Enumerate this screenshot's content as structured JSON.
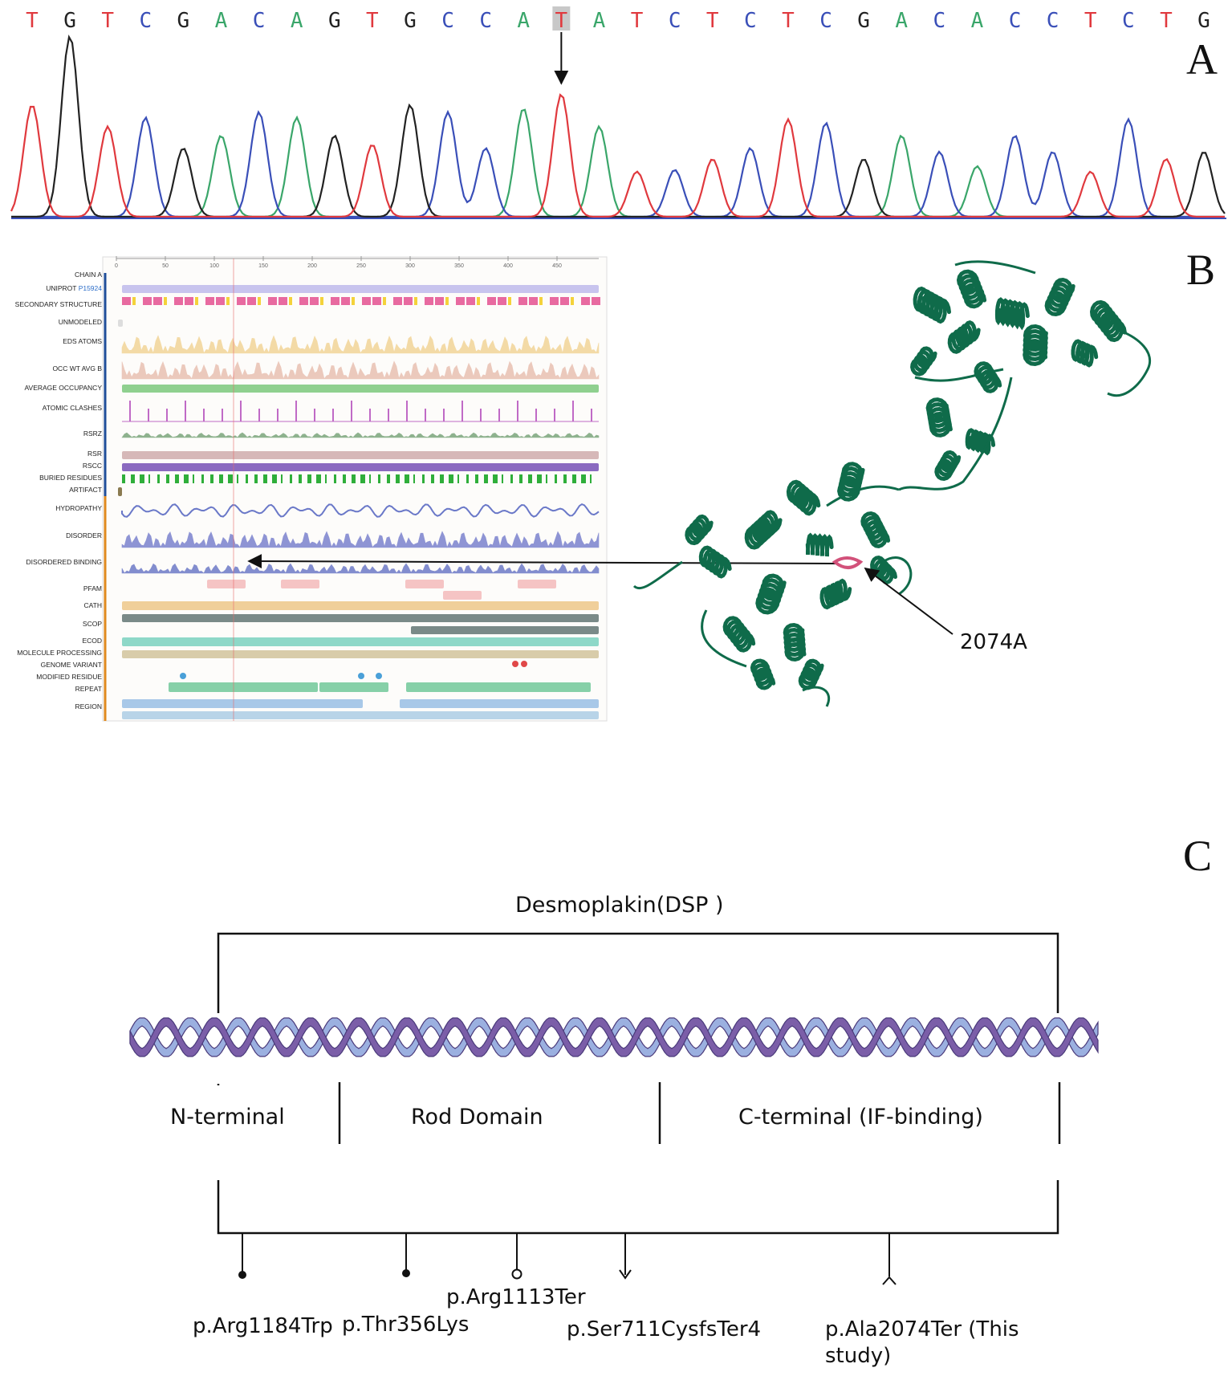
{
  "panel_a": {
    "letter": "A",
    "sequence": [
      "T",
      "G",
      "T",
      "C",
      "G",
      "A",
      "C",
      "A",
      "G",
      "T",
      "G",
      "C",
      "C",
      "A",
      "T",
      "A",
      "T",
      "C",
      "T",
      "C",
      "T",
      "C",
      "G",
      "A",
      "C",
      "A",
      "C",
      "C",
      "T",
      "C",
      "T",
      "G"
    ],
    "highlight_index": 14,
    "colors": {
      "T": "#e0393e",
      "G": "#222222",
      "C": "#3a4fb8",
      "A": "#3aa66a"
    }
  },
  "panel_b": {
    "letter": "B",
    "uniprot_prefix": "UNIPROT",
    "uniprot_id": "P15924",
    "axis_ticks": [
      "0",
      "50",
      "100",
      "150",
      "200",
      "250",
      "300",
      "350",
      "400",
      "450"
    ],
    "track_labels": [
      "CHAIN A",
      "SECONDARY STRUCTURE",
      "UNMODELED",
      "EDS ATOMS",
      "OCC WT AVG B",
      "AVERAGE OCCUPANCY",
      "ATOMIC CLASHES",
      "RSRZ",
      "RSR",
      "RSCC",
      "BURIED RESIDUES",
      "ARTIFACT",
      "HYDROPATHY",
      "DISORDER",
      "DISORDERED BINDING",
      "PFAM",
      "CATH",
      "SCOP",
      "ECOD",
      "MOLECULE PROCESSING",
      "GENOME VARIANT",
      "MODIFIED RESIDUE",
      "REPEAT",
      "REGION"
    ],
    "structure_label": "2074A",
    "protein_color": "#0f6b4a",
    "site_color": "#d2517a"
  },
  "panel_c": {
    "letter": "C",
    "title": "Desmoplakin(DSP )",
    "domains": [
      "N-terminal",
      "Rod Domain",
      "C-terminal (IF-binding)"
    ],
    "mutations": [
      "p.Arg1184Trp",
      "p.Thr356Lys",
      "p.Arg1113Ter",
      "p.Ser711CysfsTer4",
      "p.Ala2074Ter (This",
      "study)"
    ],
    "helix_colors": {
      "dark": "#7b5ea8",
      "light": "#9bb0e0",
      "outline": "#4a3a7a"
    }
  }
}
